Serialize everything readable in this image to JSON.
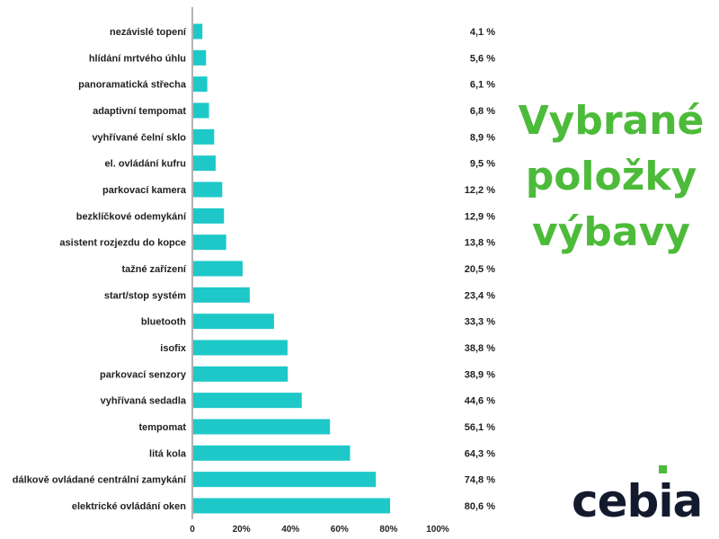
{
  "title_lines": [
    "Vybrané",
    "položky",
    "výbavy"
  ],
  "logo_text": "cebia",
  "colors": {
    "bar": "#1ec8c8",
    "title": "#4cbb3a",
    "logo": "#141a2e",
    "logo_dot": "#4cbb3a"
  },
  "chart_data": {
    "type": "bar",
    "orientation": "horizontal",
    "categories": [
      "nezávislé topení",
      "hlídání mrtvého úhlu",
      "panoramatická střecha",
      "adaptivní tempomat",
      "vyhřívané čelní sklo",
      "el. ovládání kufru",
      "parkovací kamera",
      "bezklíčkové odemykání",
      "asistent rozjezdu do kopce",
      "tažné zařízení",
      "start/stop systém",
      "bluetooth",
      "isofix",
      "parkovací senzory",
      "vyhřívaná sedadla",
      "tempomat",
      "litá kola",
      "dálkově ovládané centrální zamykání",
      "elektrické ovládání oken"
    ],
    "values": [
      4.1,
      5.6,
      6.1,
      6.8,
      8.9,
      9.5,
      12.2,
      12.9,
      13.8,
      20.5,
      23.4,
      33.3,
      38.8,
      38.9,
      44.6,
      56.1,
      64.3,
      74.8,
      80.6
    ],
    "value_labels": [
      "4,1 %",
      "5,6 %",
      "6,1 %",
      "6,8 %",
      "8,9 %",
      "9,5 %",
      "12,2 %",
      "12,9 %",
      "13,8 %",
      "20,5 %",
      "23,4 %",
      "33,3 %",
      "38,8 %",
      "38,9 %",
      "44,6 %",
      "56,1 %",
      "64,3 %",
      "74,8 %",
      "80,6 %"
    ],
    "xlim": [
      0,
      100
    ],
    "xticks": [
      0,
      20,
      40,
      60,
      80,
      100
    ],
    "xtick_labels": [
      "0",
      "20%",
      "40%",
      "60%",
      "80%",
      "100%"
    ],
    "grid": false,
    "legend": "none"
  }
}
